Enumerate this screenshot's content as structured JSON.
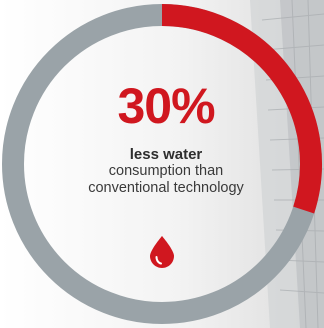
{
  "stat": {
    "value": "30%",
    "fraction": 0.3,
    "headline": "less water",
    "line_1": "consumption than",
    "line_2": "conventional technology"
  },
  "icons": {
    "drop": "water-drop-icon"
  },
  "colors": {
    "accent": "#d0171f",
    "ring_track": "#9aa3a8",
    "text": "#333333"
  }
}
